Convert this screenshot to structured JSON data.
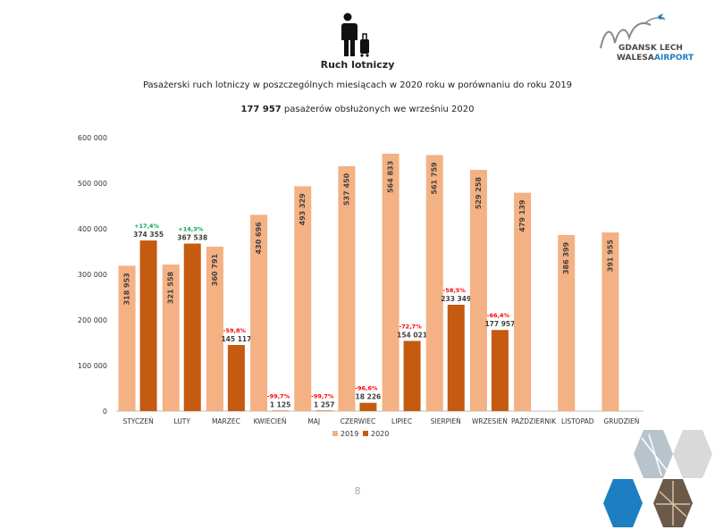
{
  "header": {
    "title": "Ruch lotniczy",
    "subtitle": "Pasażerski ruch lotniczy w poszczególnych miesiącach w 2020 roku w porównaniu do roku 2019",
    "highlight_value": "177 957",
    "highlight_text": "pasażerów obsłużonych we wrześniu 2020"
  },
  "logo": {
    "line1": "GDANSK LECH",
    "line2a": "WALESA",
    "line2b": "AIRPORT",
    "colors": {
      "dark": "#4a4a4a",
      "blue": "#1d7fc1"
    }
  },
  "page_number": "8",
  "chart_data": {
    "type": "bar",
    "categories": [
      "STYCZEŃ",
      "LUTY",
      "MARZEC",
      "KWIECIEŃ",
      "MAJ",
      "CZERWIEC",
      "LIPIEC",
      "SIERPIEŃ",
      "WRZESIEŃ",
      "PAŹDZIERNIK",
      "LISTOPAD",
      "GRUDZIEŃ"
    ],
    "series": [
      {
        "name": "2019",
        "color": "#f4b183",
        "values": [
          318953,
          321558,
          360791,
          430696,
          493329,
          537450,
          564833,
          561759,
          529258,
          479139,
          386399,
          391955
        ],
        "labels": [
          "318 953",
          "321 558",
          "360 791",
          "430 696",
          "493 329",
          "537 450",
          "564 833",
          "561 759",
          "529 258",
          "479 139",
          "386 399",
          "391 955"
        ]
      },
      {
        "name": "2020",
        "color": "#c55a11",
        "values": [
          374355,
          367538,
          145117,
          1125,
          1257,
          18226,
          154021,
          233349,
          177957,
          null,
          null,
          null
        ],
        "labels": [
          "374 355",
          "367 538",
          "145 117",
          "1 125",
          "1 257",
          "18 226",
          "154 021",
          "233 349",
          "177 957",
          "",
          "",
          ""
        ]
      }
    ],
    "changes": [
      "+17,4%",
      "+14,3%",
      "-59,8%",
      "-99,7%",
      "-99,7%",
      "-96,6%",
      "-72,7%",
      "-58,5%",
      "-66,4%",
      "",
      "",
      ""
    ],
    "change_colors": {
      "positive": "#00a651",
      "negative": "#ff0000"
    },
    "ylim": [
      0,
      600000
    ],
    "yticks": [
      0,
      100000,
      200000,
      300000,
      400000,
      500000,
      600000
    ],
    "ytick_labels": [
      "0",
      "100 000",
      "200 000",
      "300 000",
      "400 000",
      "500 000",
      "600 000"
    ],
    "grid": false,
    "legend_position": "bottom"
  }
}
